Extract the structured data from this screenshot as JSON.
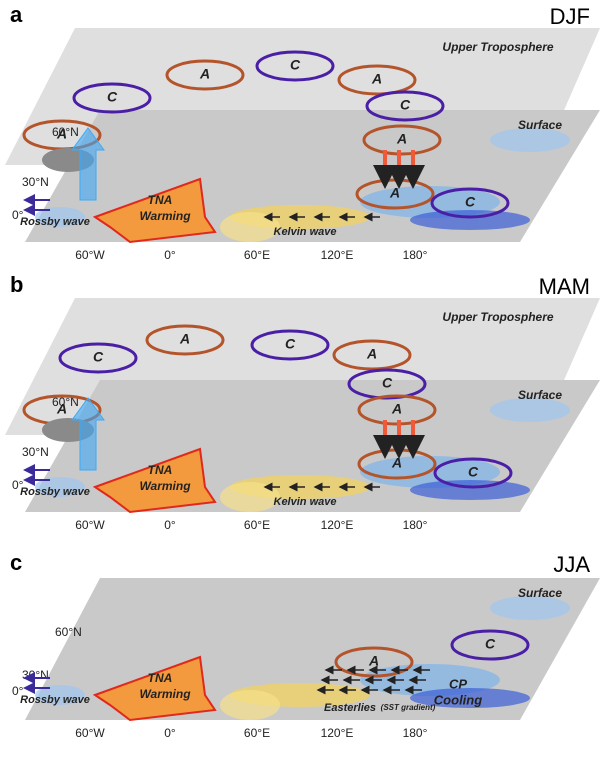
{
  "panels": [
    {
      "letter": "a",
      "season": "DJF",
      "upper_layer": "Upper Troposphere",
      "surface_layer": "Surface",
      "lat_labels": [
        "60°N",
        "30°N",
        "0°"
      ],
      "lon_labels": [
        "60°W",
        "0°",
        "60°E",
        "120°E",
        "180°"
      ],
      "circulations": [
        "A",
        "C",
        "C",
        "A",
        "C",
        "A",
        "A",
        "A",
        "C"
      ],
      "rossby": "Rossby wave",
      "tna": [
        "TNA",
        "Warming"
      ],
      "kelvin": "Kelvin wave"
    },
    {
      "letter": "b",
      "season": "MAM",
      "upper_layer": "Upper Troposphere",
      "surface_layer": "Surface",
      "lat_labels": [
        "60°N",
        "30°N",
        "0°"
      ],
      "lon_labels": [
        "60°W",
        "0°",
        "60°E",
        "120°E",
        "180°"
      ],
      "circulations": [
        "A",
        "C",
        "C",
        "A",
        "C",
        "A",
        "A",
        "A",
        "C"
      ],
      "rossby": "Rossby wave",
      "tna": [
        "TNA",
        "Warming"
      ],
      "kelvin": "Kelvin wave"
    },
    {
      "letter": "c",
      "season": "JJA",
      "surface_layer": "Surface",
      "lat_labels": [
        "60°N",
        "30°N",
        "0°"
      ],
      "lon_labels": [
        "60°W",
        "0°",
        "60°E",
        "120°E",
        "180°"
      ],
      "circulations": [
        "A",
        "C"
      ],
      "rossby": "Rossby wave",
      "tna": [
        "TNA",
        "Warming"
      ],
      "easterlies": "Easterlies",
      "easterlies_note": "(SST gradient)",
      "cp": [
        "CP",
        "Cooling"
      ]
    }
  ]
}
